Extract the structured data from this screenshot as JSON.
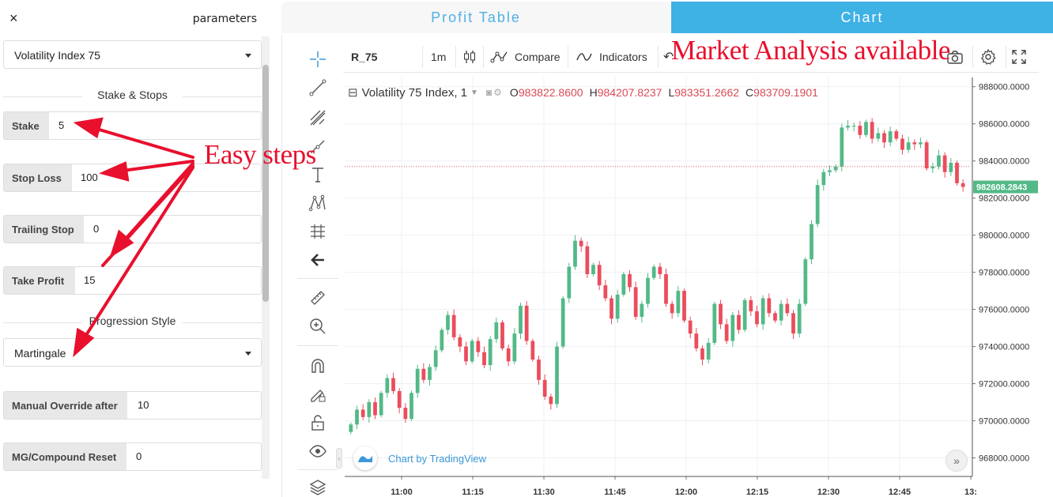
{
  "panel": {
    "close_icon": "×",
    "title": "parameters",
    "market_select": "Volatility Index 75",
    "section_stake": "Stake & Stops",
    "section_progression": "Progression Style",
    "fields": [
      {
        "label": "Stake",
        "value": "5"
      },
      {
        "label": "Stop Loss",
        "value": "100"
      },
      {
        "label": "Trailing Stop",
        "value": "0"
      },
      {
        "label": "Take Profit",
        "value": "15"
      },
      {
        "label": "Manual Override after",
        "value": "10"
      },
      {
        "label": "MG/Compound Reset",
        "value": "0"
      }
    ],
    "progression_select": "Martingale"
  },
  "tabs": {
    "profit_table": "Profit Table",
    "chart": "Chart"
  },
  "toolbar": {
    "symbol": "R_75",
    "interval": "1m",
    "compare": "Compare",
    "indicators": "Indicators"
  },
  "legend": {
    "title": "Volatility 75 Index, 1",
    "o_label": "O",
    "o_value": "983822.8600",
    "h_label": "H",
    "h_value": "984207.8237",
    "l_label": "L",
    "l_value": "983351.2662",
    "c_label": "C",
    "c_value": "983709.1901"
  },
  "tradingview_label": "Chart by TradingView",
  "annotations": {
    "market": "Market Analysis available",
    "easy": "Easy steps"
  },
  "colors": {
    "accent": "#3eb1e5",
    "up": "#53b987",
    "down": "#eb4d5c",
    "annotation": "#e8102d"
  },
  "chart_data": {
    "type": "candlestick",
    "current_price_label": "982608.2843",
    "ylim": [
      967000,
      988500
    ],
    "y_ticks": [
      "968000.0000",
      "970000.0000",
      "972000.0000",
      "974000.0000",
      "976000.0000",
      "978000.0000",
      "980000.0000",
      "982000.0000",
      "984000.0000",
      "986000.0000",
      "988000.0000"
    ],
    "x_ticks": [
      "11:00",
      "11:15",
      "11:30",
      "11:45",
      "12:00",
      "12:15",
      "12:30",
      "12:45",
      "13:"
    ],
    "price_line": 983700,
    "close": [
      969800,
      970600,
      970200,
      971000,
      970300,
      971500,
      972300,
      971600,
      970700,
      970100,
      971500,
      972800,
      972200,
      972900,
      973800,
      974900,
      975700,
      974500,
      974000,
      973200,
      974300,
      973700,
      973000,
      974400,
      975300,
      973900,
      973200,
      974700,
      976200,
      974300,
      973300,
      972200,
      971300,
      970900,
      974000,
      976600,
      978300,
      979700,
      979400,
      977900,
      978400,
      977300,
      976600,
      975500,
      976800,
      977900,
      977200,
      975600,
      976300,
      977700,
      978300,
      977900,
      976300,
      975800,
      977000,
      975400,
      974700,
      973900,
      973300,
      974200,
      976300,
      975200,
      974300,
      975700,
      974900,
      976500,
      975900,
      975200,
      976600,
      975800,
      975400,
      976300,
      975800,
      974700,
      976300,
      978700,
      980600,
      982700,
      983400,
      983500,
      983700,
      985800,
      985900,
      985900,
      985400,
      986100,
      985200,
      985500,
      985000,
      985600,
      985200,
      984600,
      985000,
      984900,
      985000,
      983600,
      983700,
      984300,
      983400,
      983900,
      982800,
      982600
    ]
  }
}
